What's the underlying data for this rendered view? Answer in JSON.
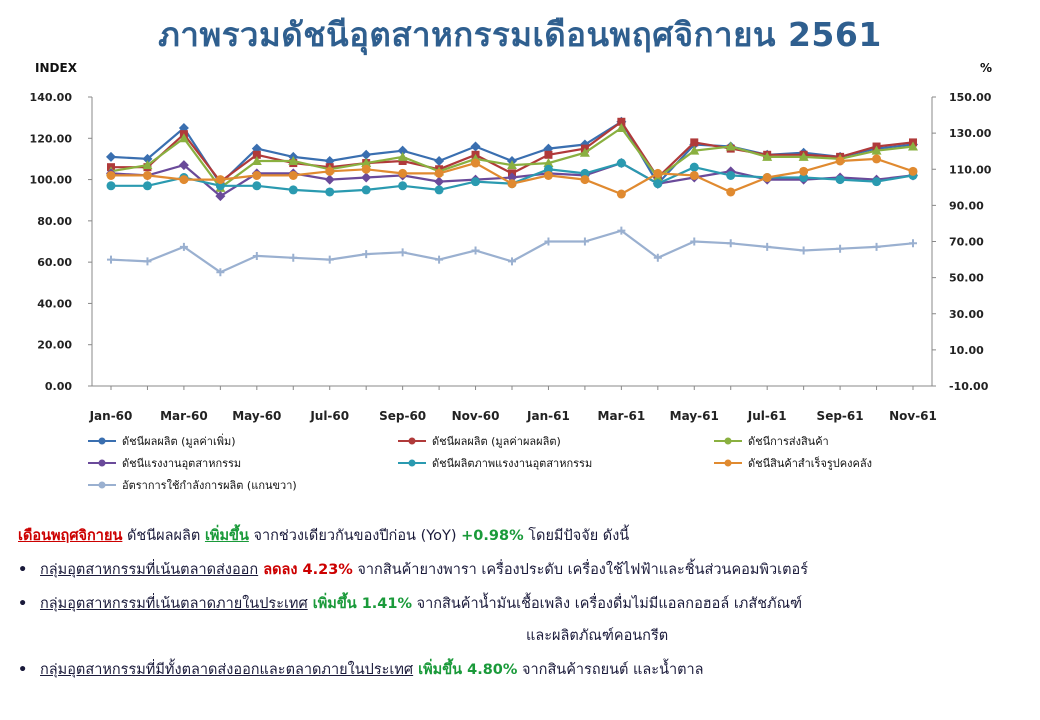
{
  "title": "ภาพรวมดัชนีอุตสาหกรรมเดือนพฤศจิกายน 2561",
  "chart_data": {
    "type": "line",
    "y_left_label": "INDEX",
    "y_right_label": "%",
    "y_left_range": [
      0,
      140
    ],
    "y_right_range": [
      -10,
      150
    ],
    "y_left_ticks": [
      "0.00",
      "20.00",
      "40.00",
      "60.00",
      "80.00",
      "100.00",
      "120.00",
      "140.00"
    ],
    "y_right_ticks": [
      "-10.00",
      "10.00",
      "30.00",
      "50.00",
      "70.00",
      "90.00",
      "110.00",
      "130.00",
      "150.00"
    ],
    "x_tick_labels": [
      "Jan-60",
      "Mar-60",
      "May-60",
      "Jul-60",
      "Sep-60",
      "Nov-60",
      "Jan-61",
      "Mar-61",
      "May-61",
      "Jul-61",
      "Sep-61",
      "Nov-61"
    ],
    "categories": [
      "Jan-60",
      "Feb-60",
      "Mar-60",
      "Apr-60",
      "May-60",
      "Jun-60",
      "Jul-60",
      "Aug-60",
      "Sep-60",
      "Oct-60",
      "Nov-60",
      "Dec-60",
      "Jan-61",
      "Feb-61",
      "Mar-61",
      "Apr-61",
      "May-61",
      "Jun-61",
      "Jul-61",
      "Aug-61",
      "Sep-61",
      "Oct-61",
      "Nov-61"
    ],
    "grid": false,
    "legend_position": "bottom",
    "series": [
      {
        "name": "ดัชนีผลผลิต (มูลค่าเพิ่ม)",
        "color": "#3a6fb0",
        "marker": "diamond",
        "axis": "left",
        "values": [
          111,
          110,
          125,
          98,
          115,
          111,
          109,
          112,
          114,
          109,
          116,
          109,
          115,
          117,
          128,
          98,
          117,
          116,
          112,
          113,
          111,
          115,
          117
        ]
      },
      {
        "name": "ดัชนีผลผลิต (มูลค่าผลผลิต)",
        "color": "#b03a3a",
        "marker": "square",
        "axis": "left",
        "values": [
          106,
          106,
          122,
          99,
          112,
          108,
          106,
          108,
          109,
          105,
          112,
          103,
          112,
          115,
          128,
          101,
          118,
          115,
          112,
          112,
          111,
          116,
          118
        ]
      },
      {
        "name": "ดัชนีการส่งสินค้า",
        "color": "#8ab040",
        "marker": "triangle",
        "axis": "left",
        "values": [
          104,
          107,
          120,
          96,
          109,
          109,
          105,
          108,
          111,
          104,
          110,
          107,
          108,
          113,
          125,
          101,
          114,
          116,
          111,
          111,
          110,
          114,
          116
        ]
      },
      {
        "name": "ดัชนีแรงงานอุตสาหกรรม",
        "color": "#6a4a9a",
        "marker": "diamond",
        "axis": "left",
        "values": [
          103,
          102,
          107,
          92,
          103,
          103,
          100,
          101,
          102,
          99,
          100,
          101,
          103,
          102,
          108,
          98,
          101,
          104,
          100,
          100,
          101,
          100,
          102
        ]
      },
      {
        "name": "ดัชนีผลิตภาพแรงงานอุตสาหกรรม",
        "color": "#2a9ab0",
        "marker": "circle",
        "axis": "left",
        "values": [
          97,
          97,
          101,
          97,
          97,
          95,
          94,
          95,
          97,
          95,
          99,
          98,
          105,
          103,
          108,
          98,
          106,
          102,
          101,
          101,
          100,
          99,
          102
        ]
      },
      {
        "name": "ดัชนีสินค้าสำเร็จรูปคงคลัง",
        "color": "#e08a30",
        "marker": "circle",
        "axis": "left",
        "values": [
          102,
          102,
          100,
          100,
          102,
          102,
          104,
          105,
          103,
          103,
          108,
          98,
          102,
          100,
          93,
          103,
          102,
          94,
          101,
          104,
          109,
          110,
          104
        ]
      },
      {
        "name": "อัตราการใช้กำลังการผลิต (แกนขวา)",
        "color": "#9ab0d0",
        "marker": "cross",
        "axis": "right",
        "values": [
          60,
          59,
          67,
          53,
          62,
          61,
          60,
          63,
          64,
          60,
          65,
          59,
          70,
          70,
          76,
          61,
          70,
          69,
          67,
          65,
          66,
          67,
          69
        ]
      }
    ]
  },
  "text": {
    "l1_a": "เดือนพฤศจิกายน",
    "l1_b": " ดัชนีผลผลิต ",
    "l1_c": "เพิ่มขึ้น",
    "l1_d": " จากช่วงเดียวกันของปีก่อน (YoY) ",
    "l1_e": "+0.98%",
    "l1_f": " โดยมีปัจจัย ดังนี้",
    "bullet": "•",
    "b1_a": "กลุ่มอุตสาหกรรมที่เน้นตลาดส่งออก",
    "b1_b": " ลดลง 4.23%",
    "b1_c": " จากสินค้ายางพารา เครื่องประดับ เครื่องใช้ไฟฟ้าและชิ้นส่วนคอมพิวเตอร์",
    "b2_a": "กลุ่มอุตสาหกรรมที่เน้นตลาดภายในประเทศ",
    "b2_b": " เพิ่มขึ้น 1.41%",
    "b2_c": " จากสินค้าน้ำมันเชื้อเพลิง เครื่องดื่มไม่มีแอลกอฮอล์ เภสัชภัณฑ์",
    "b2_d": "และผลิตภัณฑ์คอนกรีต",
    "b3_a": "กลุ่มอุตสาหกรรมที่มีทั้งตลาดส่งออกและตลาดภายในประเทศ",
    "b3_b": " เพิ่มขึ้น 4.80%",
    "b3_c": " จากสินค้ารถยนต์ และน้ำตาล"
  }
}
